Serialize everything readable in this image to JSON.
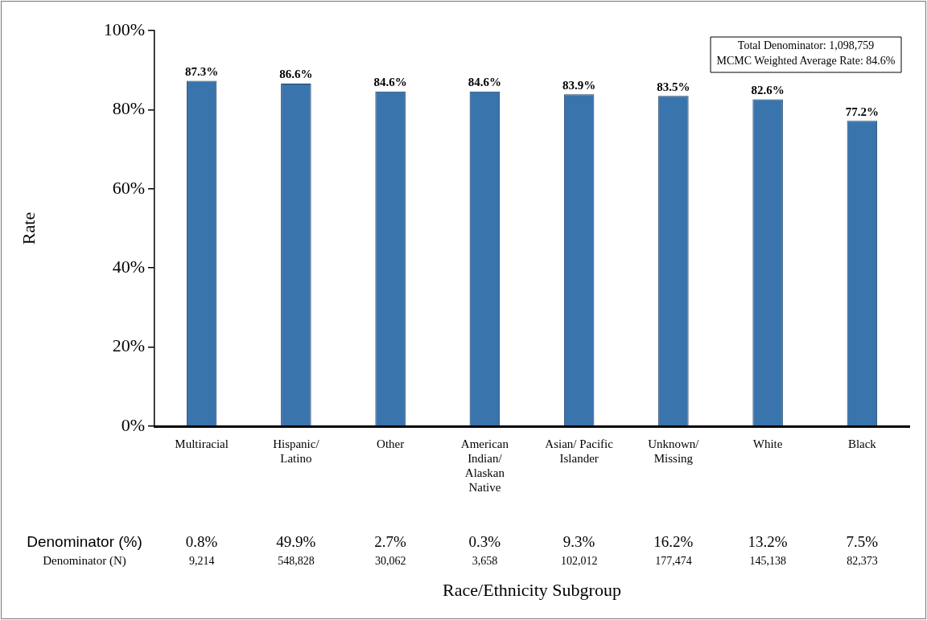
{
  "chart_data": {
    "type": "bar",
    "xlabel": "Race/Ethnicity Subgroup",
    "ylabel": "Rate",
    "categories": [
      "Multiracial",
      "Hispanic/ Latino",
      "Other",
      "American Indian/ Alaskan Native",
      "Asian/ Pacific Islander",
      "Unknown/ Missing",
      "White",
      "Black"
    ],
    "values": [
      87.3,
      86.6,
      84.6,
      84.6,
      83.9,
      83.5,
      82.6,
      77.2
    ],
    "value_labels": [
      "87.3%",
      "86.6%",
      "84.6%",
      "84.6%",
      "83.9%",
      "83.5%",
      "82.6%",
      "77.2%"
    ],
    "color": "#3a74ad",
    "ylim": [
      0,
      100
    ],
    "yticks": [
      {
        "value": 0,
        "label": "0%"
      },
      {
        "value": 20,
        "label": "20%"
      },
      {
        "value": 40,
        "label": "40%"
      },
      {
        "value": 60,
        "label": "60%"
      },
      {
        "value": 80,
        "label": "80%"
      },
      {
        "value": 100,
        "label": "100%"
      }
    ],
    "grid": false,
    "legend": false,
    "annotations": [
      "Total Denominator: 1,098,759",
      "MCMC Weighted Average Rate: 84.6%",
      "Denominator (%)",
      "0.8%",
      "49.9%",
      "2.7%",
      "0.3%",
      "9.3%",
      "16.2%",
      "13.2%",
      "7.5%",
      "Denominator (N)",
      "9,214",
      "548,828",
      "30,062",
      "3,658",
      "102,012",
      "177,474",
      "145,138",
      "82,373"
    ]
  }
}
